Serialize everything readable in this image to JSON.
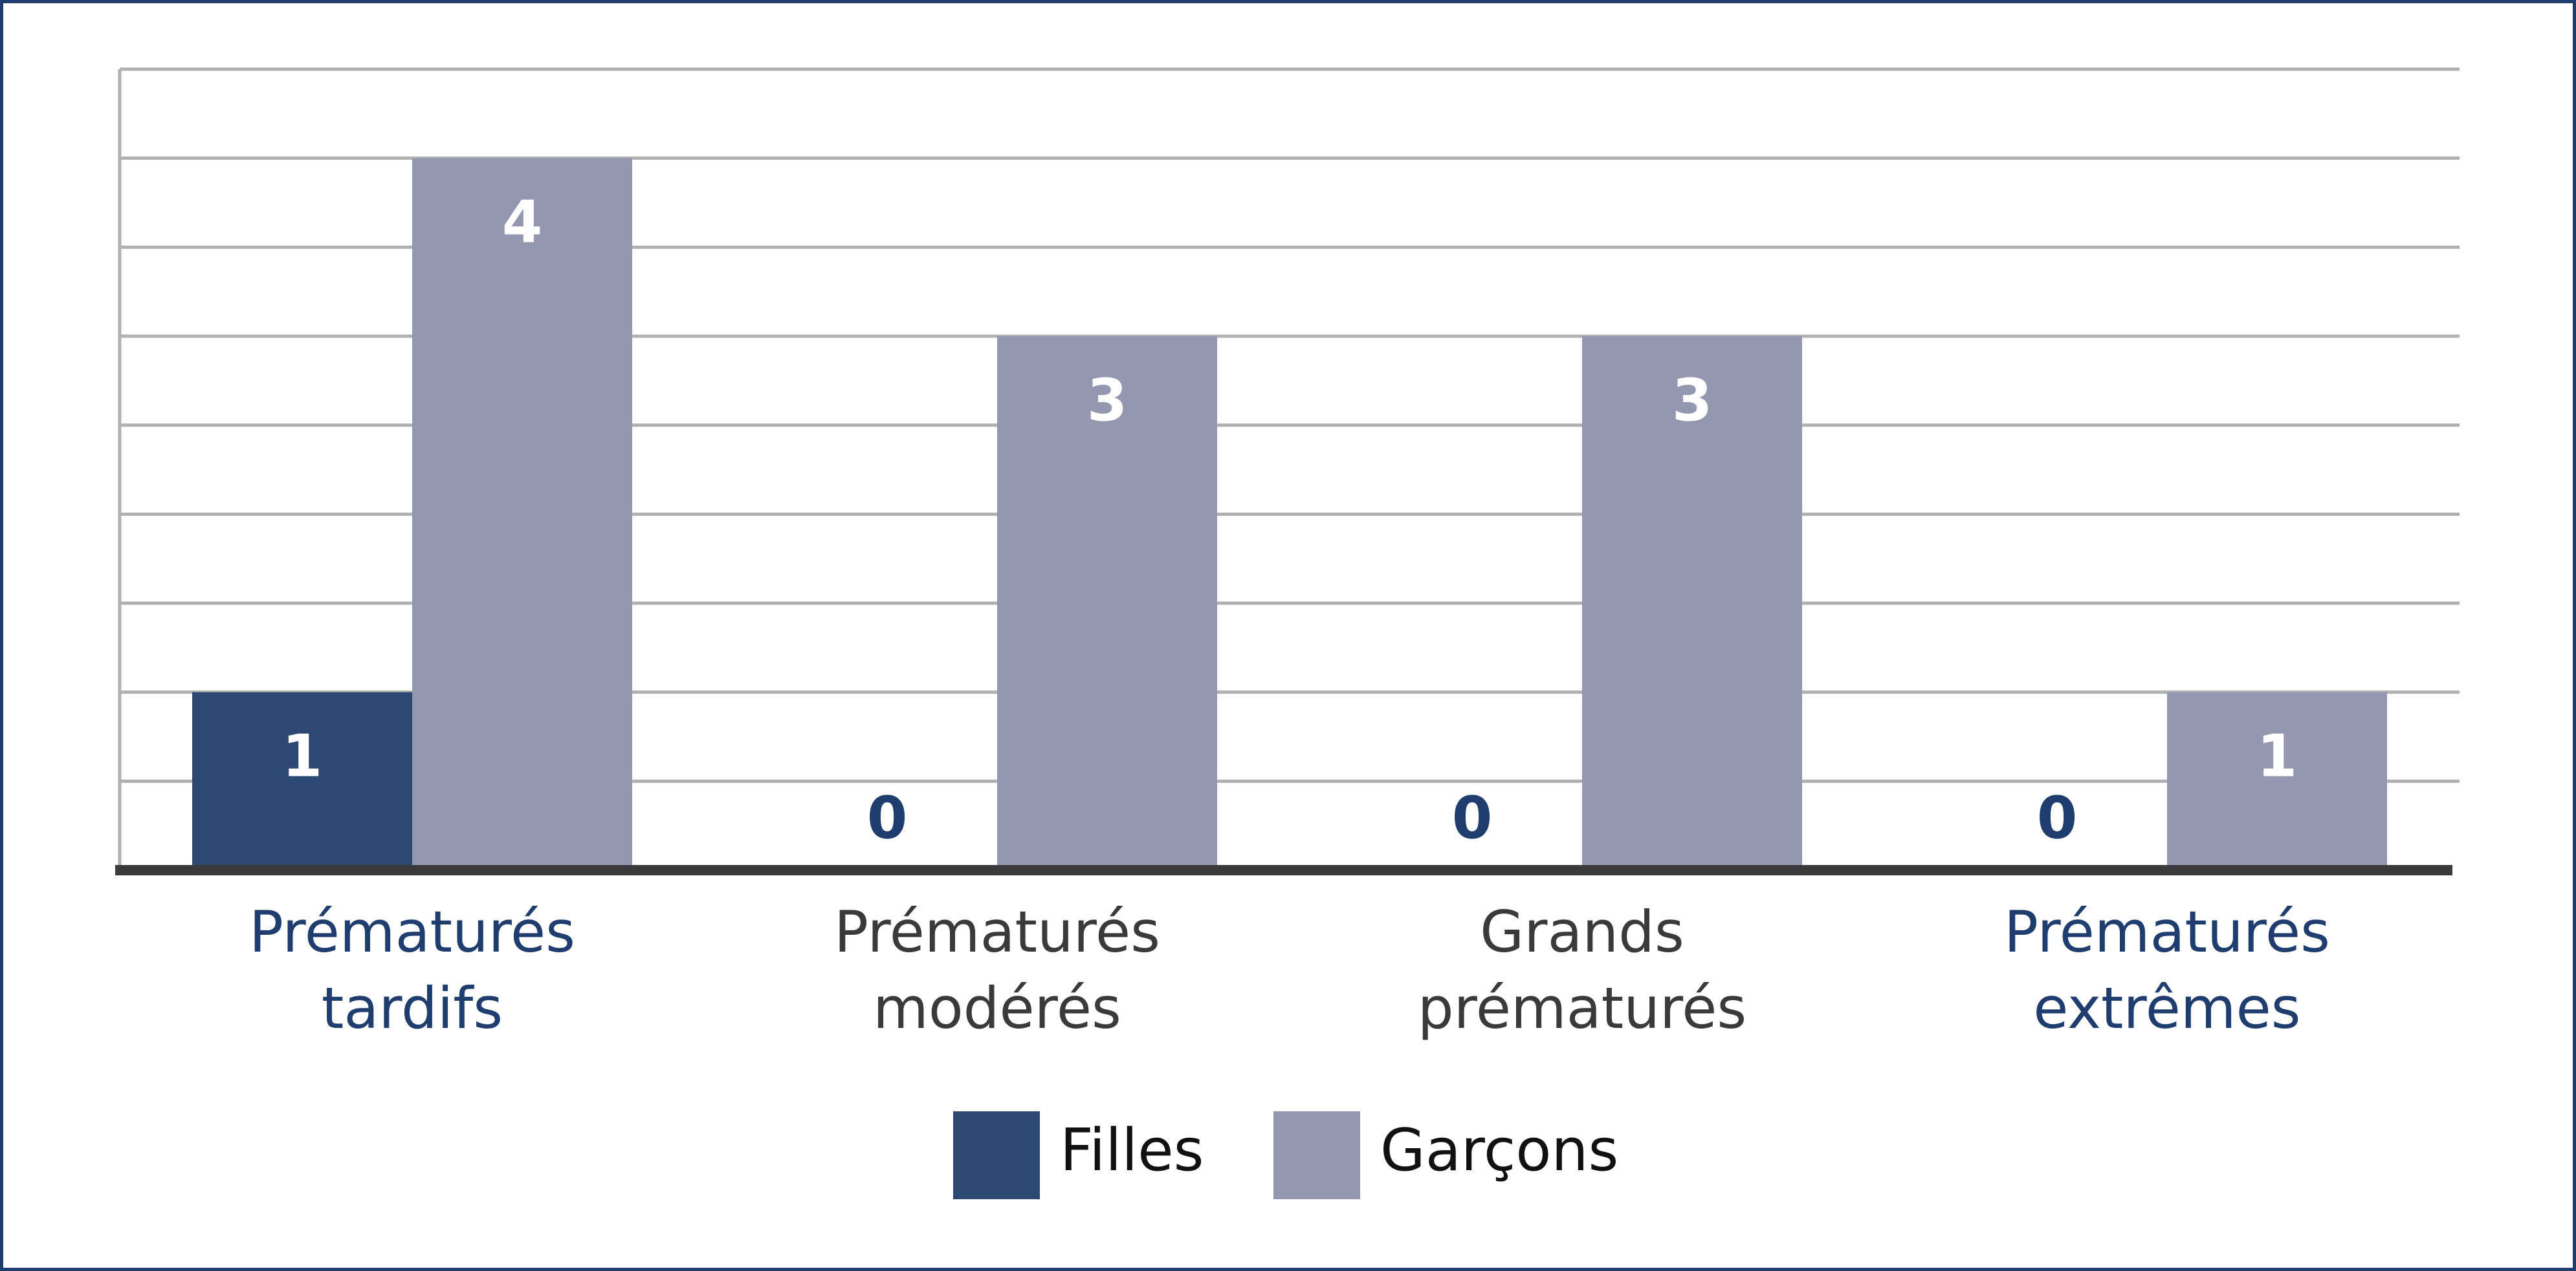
{
  "chart_data": {
    "type": "bar",
    "categories": [
      "Prématurés tardifs",
      "Prématurés modérés",
      "Grands prématurés",
      "Prématurés extrêmes"
    ],
    "category_label_colors": [
      "#1f3d6e",
      "#3a3a3a",
      "#3a3a3a",
      "#1f3d6e"
    ],
    "series": [
      {
        "name": "Filles",
        "color": "#2d4873",
        "values": [
          1,
          0,
          0,
          0
        ]
      },
      {
        "name": "Garçons",
        "color": "#9597b0",
        "values": [
          4,
          3,
          3,
          1
        ]
      }
    ],
    "ylim": [
      0,
      4.5
    ],
    "yticks": [
      0.5,
      1,
      1.5,
      2,
      2.5,
      3,
      3.5,
      4,
      4.5
    ],
    "grid": true,
    "legend": "bottom"
  }
}
